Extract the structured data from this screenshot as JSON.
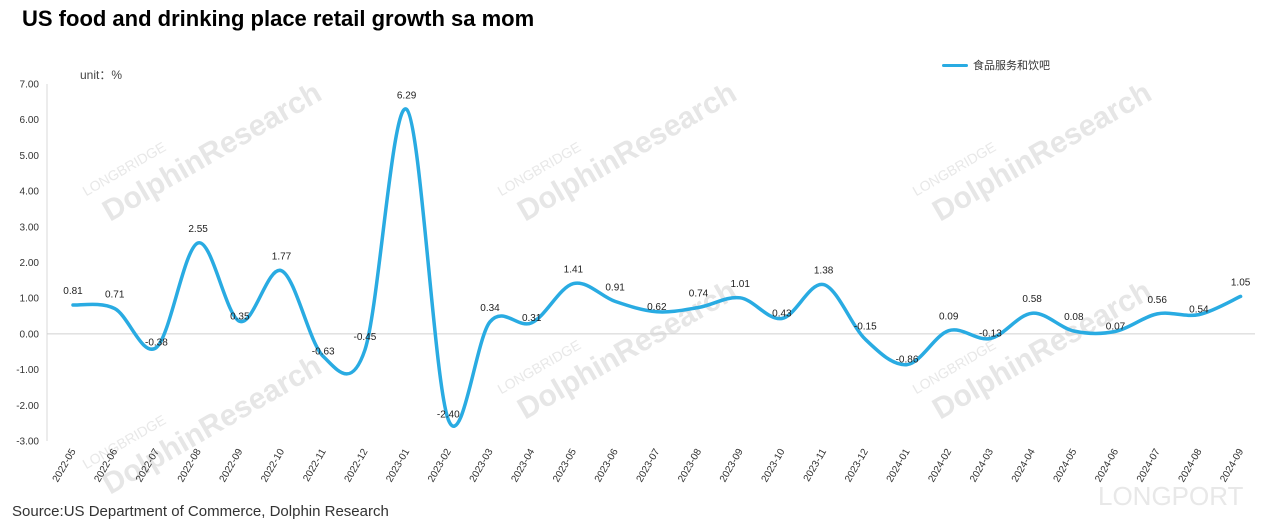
{
  "page": {
    "title": "US food and drinking place retail growth sa mom",
    "unit_label": "unit：%",
    "source": "Source:US Department of Commerce, Dolphin Research",
    "watermark": {
      "brand": "DolphinResearch",
      "sub": "LONGBRIDGE",
      "corner": "LONGPORT"
    }
  },
  "chart_data": {
    "type": "line",
    "x": [
      "2022-05",
      "2022-06",
      "2022-07",
      "2022-08",
      "2022-09",
      "2022-10",
      "2022-11",
      "2022-12",
      "2023-01",
      "2023-02",
      "2023-03",
      "2023-04",
      "2023-05",
      "2023-06",
      "2023-07",
      "2023-08",
      "2023-09",
      "2023-10",
      "2023-11",
      "2023-12",
      "2024-01",
      "2024-02",
      "2024-03",
      "2024-04",
      "2024-05",
      "2024-06",
      "2024-07",
      "2024-08",
      "2024-09"
    ],
    "series": [
      {
        "name": "食品服务和饮吧",
        "color": "#29abe2",
        "values": [
          0.81,
          0.71,
          -0.38,
          2.55,
          0.35,
          1.77,
          -0.63,
          -0.45,
          6.29,
          -2.4,
          0.34,
          0.31,
          1.41,
          0.91,
          0.62,
          0.74,
          1.01,
          0.43,
          1.38,
          -0.15,
          -0.86,
          0.09,
          -0.13,
          0.58,
          0.08,
          0.07,
          0.56,
          0.54,
          1.05
        ]
      }
    ],
    "value_labels": [
      "0.81",
      "0.71",
      "-0.38",
      "2.55",
      "0.35",
      "1.77",
      "-0.63",
      "-0.45",
      "6.29",
      "-2.40",
      "0.34",
      "0.31",
      "1.41",
      "0.91",
      "0.62",
      "0.74",
      "1.01",
      "0.43",
      "1.38",
      "-0.15",
      "-0.86",
      "0.09",
      "-0.13",
      "0.58",
      "0.08",
      "0.07",
      "0.56",
      "0.54",
      "1.05"
    ],
    "y_ticks": [
      "7.00",
      "6.00",
      "5.00",
      "4.00",
      "3.00",
      "2.00",
      "1.00",
      "0.00",
      "-1.00",
      "-2.00",
      "-3.00"
    ],
    "ylim": [
      -3,
      7
    ],
    "grid": false,
    "legend_position": "top-right"
  }
}
